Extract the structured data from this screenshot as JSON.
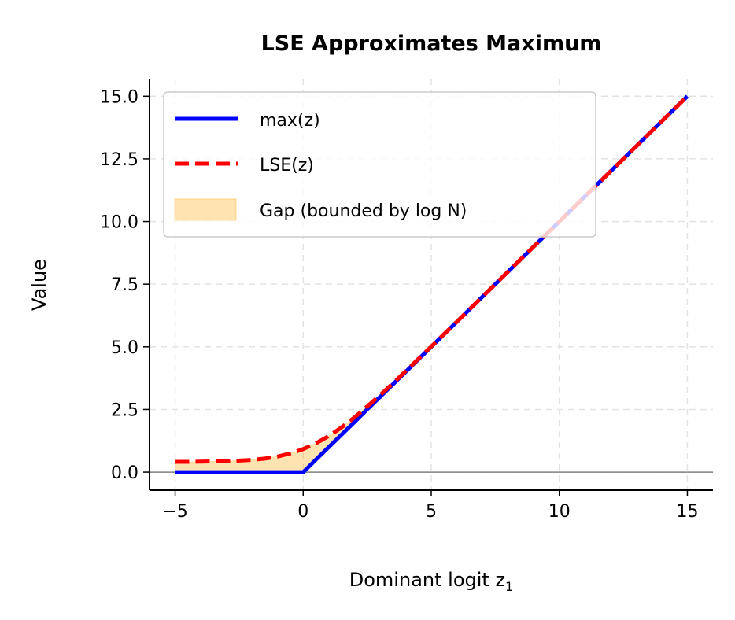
{
  "chart_data": {
    "type": "line",
    "title": "LSE Approximates Maximum",
    "xlabel": "Dominant logit z",
    "xlabel_subscript": "1",
    "ylabel": "Value",
    "xlim": [
      -6,
      16
    ],
    "ylim": [
      -0.72,
      15.7
    ],
    "xticks": [
      -5,
      0,
      5,
      10,
      15
    ],
    "xtick_labels": [
      "−5",
      "0",
      "5",
      "10",
      "15"
    ],
    "yticks": [
      0,
      2.5,
      5,
      7.5,
      10,
      12.5,
      15
    ],
    "ytick_labels": [
      "0.0",
      "2.5",
      "5.0",
      "7.5",
      "10.0",
      "12.5",
      "15.0"
    ],
    "grid": true,
    "legend_position": "top-left",
    "x": [
      -5,
      -4.5,
      -4,
      -3.5,
      -3,
      -2.5,
      -2,
      -1.5,
      -1,
      -0.5,
      0,
      0.5,
      1,
      1.5,
      2,
      2.5,
      3,
      3.5,
      4,
      4.5,
      5,
      6,
      7,
      8,
      9,
      10,
      11,
      12,
      13,
      14,
      15
    ],
    "series": [
      {
        "name": "max(z)",
        "color": "#0000ff",
        "style": "solid",
        "values": [
          0,
          0,
          0,
          0,
          0,
          0,
          0,
          0,
          0,
          0,
          0,
          0.5,
          1,
          1.5,
          2,
          2.5,
          3,
          3.5,
          4,
          4.5,
          5,
          6,
          7,
          8,
          9,
          10,
          11,
          12,
          13,
          14,
          15
        ]
      },
      {
        "name": "LSE(z)",
        "color": "#ff0000",
        "style": "dashed",
        "values": [
          0.41,
          0.41,
          0.42,
          0.43,
          0.44,
          0.46,
          0.49,
          0.54,
          0.62,
          0.75,
          0.92,
          1.15,
          1.44,
          1.79,
          2.18,
          2.62,
          3.07,
          3.54,
          4.03,
          4.52,
          5.01,
          6.0,
          7.0,
          8.0,
          9.0,
          10.0,
          11.0,
          12.0,
          13.0,
          14.0,
          15.0
        ]
      }
    ],
    "fill": {
      "name": "Gap (bounded by log N)",
      "color": "#ffa500",
      "alpha": 0.3,
      "between": [
        "max(z)",
        "LSE(z)"
      ]
    },
    "hline": {
      "y": 0,
      "color": "#808080"
    }
  }
}
